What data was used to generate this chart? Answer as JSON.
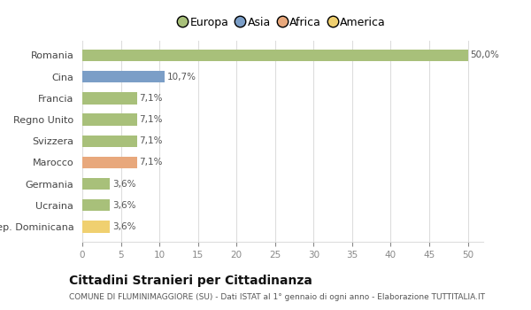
{
  "categories": [
    "Romania",
    "Cina",
    "Francia",
    "Regno Unito",
    "Svizzera",
    "Marocco",
    "Germania",
    "Ucraina",
    "Rep. Dominicana"
  ],
  "values": [
    50.0,
    10.7,
    7.1,
    7.1,
    7.1,
    7.1,
    3.6,
    3.6,
    3.6
  ],
  "labels": [
    "50,0%",
    "10,7%",
    "7,1%",
    "7,1%",
    "7,1%",
    "7,1%",
    "3,6%",
    "3,6%",
    "3,6%"
  ],
  "colors": [
    "#a8c07a",
    "#7b9ec7",
    "#a8c07a",
    "#a8c07a",
    "#a8c07a",
    "#e8a87c",
    "#a8c07a",
    "#a8c07a",
    "#f0d070"
  ],
  "legend": [
    {
      "label": "Europa",
      "color": "#a8c07a"
    },
    {
      "label": "Asia",
      "color": "#7b9ec7"
    },
    {
      "label": "Africa",
      "color": "#e8a87c"
    },
    {
      "label": "America",
      "color": "#f0d070"
    }
  ],
  "title": "Cittadini Stranieri per Cittadinanza",
  "subtitle": "COMUNE DI FLUMINIMAGGIORE (SU) - Dati ISTAT al 1° gennaio di ogni anno - Elaborazione TUTTITALIA.IT",
  "xlim": [
    0,
    52
  ],
  "xticks": [
    0,
    5,
    10,
    15,
    20,
    25,
    30,
    35,
    40,
    45,
    50
  ],
  "background_color": "#ffffff",
  "grid_color": "#dddddd"
}
